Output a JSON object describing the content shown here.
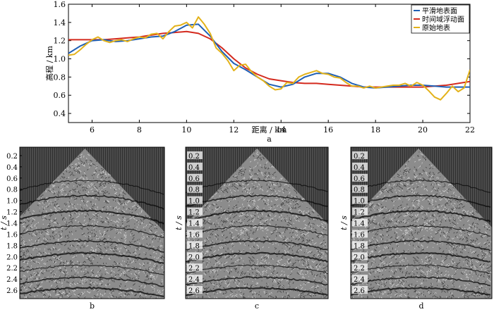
{
  "chart_data": [
    {
      "type": "line",
      "panel_label": "a",
      "xlabel": "距离 / km",
      "ylabel": "高程 / km",
      "xlim": [
        5,
        22
      ],
      "ylim": [
        0.3,
        1.6
      ],
      "xticks": [
        6,
        8,
        10,
        12,
        14,
        16,
        18,
        20,
        22
      ],
      "yticks": [
        0.4,
        0.6,
        0.8,
        1.0,
        1.2,
        1.4,
        1.6
      ],
      "ytick_labels": [
        "0.4",
        "0.6",
        "0.8",
        "1.0",
        "1.2",
        "1.4",
        "1.6"
      ],
      "legend_position": "top-right",
      "series": [
        {
          "name": "平滑地表面",
          "color": "#1f5fb5",
          "x": [
            5.0,
            5.5,
            6.0,
            6.5,
            7.0,
            7.5,
            8.0,
            8.5,
            9.0,
            9.5,
            10.0,
            10.5,
            11.0,
            11.5,
            12.0,
            12.5,
            13.0,
            13.5,
            14.0,
            14.5,
            15.0,
            15.5,
            16.0,
            16.5,
            17.0,
            17.5,
            18.0,
            18.5,
            19.0,
            19.5,
            20.0,
            20.5,
            21.0,
            21.5,
            22.0
          ],
          "y": [
            1.06,
            1.14,
            1.2,
            1.21,
            1.19,
            1.2,
            1.22,
            1.24,
            1.25,
            1.3,
            1.37,
            1.38,
            1.25,
            1.08,
            0.95,
            0.88,
            0.8,
            0.72,
            0.69,
            0.72,
            0.8,
            0.84,
            0.84,
            0.8,
            0.73,
            0.69,
            0.68,
            0.69,
            0.7,
            0.71,
            0.71,
            0.7,
            0.69,
            0.69,
            0.69
          ]
        },
        {
          "name": "时间域浮动面",
          "color": "#d42a1e",
          "x": [
            5.0,
            5.5,
            6.0,
            6.5,
            7.0,
            7.5,
            8.0,
            8.5,
            9.0,
            9.5,
            10.0,
            10.5,
            11.0,
            11.5,
            12.0,
            12.5,
            13.0,
            13.5,
            14.0,
            14.5,
            15.0,
            15.5,
            16.0,
            16.5,
            17.0,
            17.5,
            18.0,
            18.5,
            19.0,
            19.5,
            20.0,
            20.5,
            21.0,
            21.5,
            22.0
          ],
          "y": [
            1.21,
            1.21,
            1.21,
            1.21,
            1.22,
            1.23,
            1.24,
            1.26,
            1.28,
            1.29,
            1.3,
            1.28,
            1.22,
            1.12,
            1.0,
            0.9,
            0.83,
            0.78,
            0.76,
            0.74,
            0.73,
            0.73,
            0.72,
            0.71,
            0.7,
            0.69,
            0.69,
            0.69,
            0.69,
            0.69,
            0.69,
            0.7,
            0.71,
            0.73,
            0.75
          ]
        },
        {
          "name": "原始地表",
          "color": "#e3b21a",
          "x": [
            5.0,
            5.25,
            5.5,
            5.75,
            6.0,
            6.25,
            6.5,
            6.75,
            7.0,
            7.25,
            7.5,
            7.75,
            8.0,
            8.25,
            8.5,
            8.75,
            9.0,
            9.25,
            9.5,
            9.75,
            10.0,
            10.25,
            10.5,
            10.75,
            11.0,
            11.25,
            11.5,
            11.75,
            12.0,
            12.25,
            12.5,
            12.75,
            13.0,
            13.25,
            13.5,
            13.75,
            14.0,
            14.25,
            14.5,
            14.75,
            15.0,
            15.25,
            15.5,
            15.75,
            16.0,
            16.25,
            16.5,
            16.75,
            17.0,
            17.25,
            17.5,
            17.75,
            18.0,
            18.25,
            18.5,
            18.75,
            19.0,
            19.25,
            19.5,
            19.75,
            20.0,
            20.25,
            20.5,
            20.75,
            21.0,
            21.25,
            21.5,
            21.75,
            22.0
          ],
          "y": [
            1.04,
            1.05,
            1.1,
            1.16,
            1.21,
            1.24,
            1.2,
            1.18,
            1.2,
            1.21,
            1.19,
            1.22,
            1.24,
            1.23,
            1.27,
            1.28,
            1.22,
            1.3,
            1.36,
            1.37,
            1.4,
            1.34,
            1.46,
            1.38,
            1.28,
            1.12,
            1.06,
            0.98,
            0.87,
            0.93,
            0.94,
            0.86,
            0.8,
            0.76,
            0.7,
            0.66,
            0.67,
            0.74,
            0.73,
            0.8,
            0.83,
            0.85,
            0.87,
            0.84,
            0.83,
            0.8,
            0.79,
            0.74,
            0.7,
            0.7,
            0.68,
            0.7,
            0.68,
            0.69,
            0.7,
            0.71,
            0.71,
            0.73,
            0.7,
            0.74,
            0.71,
            0.65,
            0.58,
            0.55,
            0.62,
            0.7,
            0.64,
            0.68,
            0.88
          ]
        }
      ]
    },
    {
      "type": "heatmap",
      "panel_label": "b",
      "ylabel": "t / s",
      "yticks": [
        0.2,
        0.4,
        0.6,
        0.8,
        1.0,
        1.2,
        1.4,
        1.6,
        1.8,
        2.0,
        2.2,
        2.4,
        2.6
      ],
      "ytick_labels": [
        "0.2",
        "0.4",
        "0.6",
        "0.8",
        "1.0",
        "1.2",
        "1.4",
        "1.6",
        "1.8",
        "2.0",
        "2.2",
        "2.4",
        "2.6"
      ],
      "ylim": [
        0.05,
        2.75
      ]
    },
    {
      "type": "heatmap",
      "panel_label": "c",
      "ylabel": "t / s",
      "yticks": [
        0.2,
        0.4,
        0.6,
        0.8,
        1.0,
        1.2,
        1.4,
        1.6,
        1.8,
        2.0,
        2.2,
        2.4,
        2.6
      ],
      "ytick_labels": [
        "0.2",
        "0.4",
        "0.6",
        "0.8",
        "1.0",
        "1.2",
        "1.4",
        "1.6",
        "1.8",
        "2.0",
        "2.2",
        "2.4",
        "2.6"
      ],
      "ylim": [
        0.05,
        2.75
      ]
    },
    {
      "type": "heatmap",
      "panel_label": "d",
      "ylabel": "t / s",
      "yticks": [
        0.2,
        0.4,
        0.6,
        0.8,
        1.0,
        1.2,
        1.4,
        1.6,
        1.8,
        2.0,
        2.2,
        2.4,
        2.6
      ],
      "ytick_labels": [
        "0.2",
        "0.4",
        "0.6",
        "0.8",
        "1.0",
        "1.2",
        "1.4",
        "1.6",
        "1.8",
        "2.0",
        "2.2",
        "2.4",
        "2.6"
      ],
      "ylim": [
        0.05,
        2.75
      ]
    }
  ]
}
